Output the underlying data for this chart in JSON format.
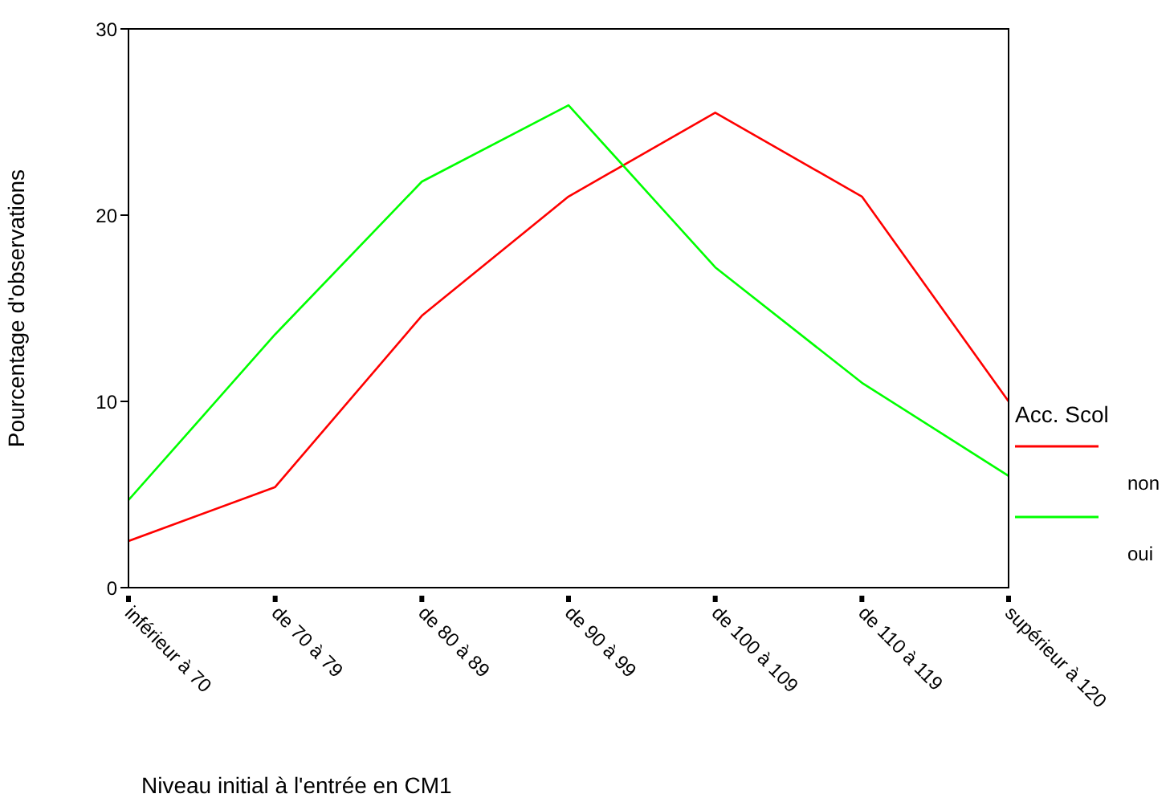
{
  "chart_data": {
    "type": "line",
    "xlabel": "Niveau initial à l'entrée en CM1",
    "ylabel": "Pourcentage d'observations",
    "legend_title": "Acc. Scol",
    "categories": [
      "inférieur à 70",
      "de 70 à 79",
      "de 80 à 89",
      "de 90 à 99",
      "de 100 à 109",
      "de 110 à 119",
      "supérieur à 120"
    ],
    "series": [
      {
        "name": "non",
        "color": "#ff0000",
        "values": [
          2.5,
          5.4,
          14.6,
          21.0,
          25.5,
          21.0,
          10.0
        ]
      },
      {
        "name": "oui",
        "color": "#00ff00",
        "values": [
          4.7,
          13.6,
          21.8,
          25.9,
          17.2,
          11.0,
          6.0
        ]
      }
    ],
    "ylim": [
      0,
      30
    ],
    "yticks": [
      0,
      10,
      20,
      30
    ],
    "grid": false,
    "legend": "right",
    "marker": "none",
    "line_style": "solid"
  }
}
